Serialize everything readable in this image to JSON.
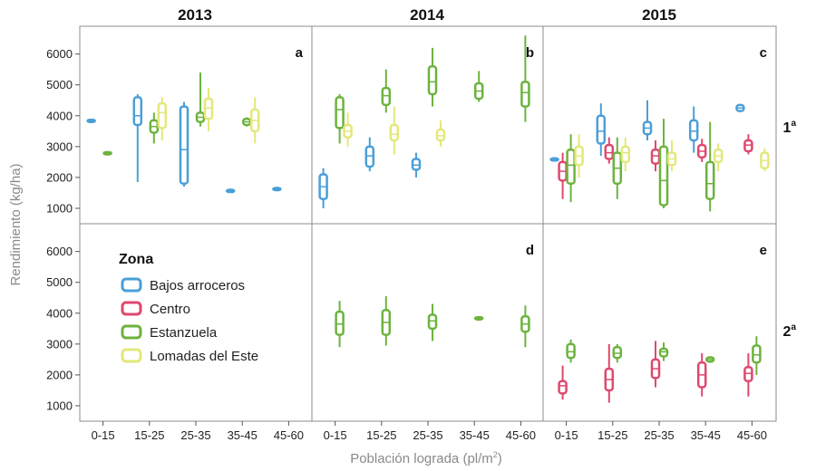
{
  "chart_data": {
    "type": "boxplot",
    "columns": [
      "2013",
      "2014",
      "2015"
    ],
    "rows": [
      {
        "label": "1",
        "sup": "a"
      },
      {
        "label": "2",
        "sup": "a"
      }
    ],
    "categories": [
      "0-15",
      "15-25",
      "25-35",
      "35-45",
      "45-60"
    ],
    "ylabel": "Rendimiento (kg/ha)",
    "xlabel": "Población lograda (pl/m",
    "xlabel_sup": "2",
    "xlabel_end": ")",
    "yticks": [
      1000,
      2000,
      3000,
      4000,
      5000,
      6000
    ],
    "ylim": [
      500,
      6900
    ],
    "legend": {
      "title": "Zona",
      "entries": [
        {
          "name": "Bajos arroceros",
          "color": "#4a9fd8"
        },
        {
          "name": "Centro",
          "color": "#e0476e"
        },
        {
          "name": "Estanzuela",
          "color": "#6cb33e"
        },
        {
          "name": "Lomadas del Este",
          "color": "#e3e87a"
        }
      ]
    },
    "panels": [
      {
        "row": 0,
        "col": 0,
        "letter": "a",
        "boxes": [
          {
            "cat": 0,
            "zone": 0,
            "stats": [
              3850,
              3850,
              3850,
              3870,
              3870
            ]
          },
          {
            "cat": 0,
            "zone": 2,
            "stats": [
              2780,
              2780,
              2800,
              2820,
              2820
            ]
          },
          {
            "cat": 1,
            "zone": 0,
            "stats": [
              1850,
              3700,
              4000,
              4600,
              4700
            ]
          },
          {
            "cat": 1,
            "zone": 2,
            "stats": [
              3100,
              3450,
              3650,
              3850,
              4100
            ]
          },
          {
            "cat": 1,
            "zone": 3,
            "stats": [
              3200,
              3600,
              4100,
              4400,
              4600
            ]
          },
          {
            "cat": 2,
            "zone": 0,
            "stats": [
              1700,
              1800,
              2900,
              4300,
              4450
            ]
          },
          {
            "cat": 2,
            "zone": 2,
            "stats": [
              3650,
              3800,
              3950,
              4100,
              5400
            ]
          },
          {
            "cat": 2,
            "zone": 3,
            "stats": [
              3500,
              3900,
              4250,
              4550,
              4900
            ]
          },
          {
            "cat": 3,
            "zone": 0,
            "stats": [
              1560,
              1560,
              1580,
              1600,
              1600
            ]
          },
          {
            "cat": 3,
            "zone": 2,
            "stats": [
              3650,
              3700,
              3800,
              3900,
              3950
            ]
          },
          {
            "cat": 3,
            "zone": 3,
            "stats": [
              3100,
              3500,
              3850,
              4200,
              4600
            ]
          },
          {
            "cat": 4,
            "zone": 0,
            "stats": [
              1620,
              1620,
              1640,
              1660,
              1660
            ]
          }
        ]
      },
      {
        "row": 0,
        "col": 1,
        "letter": "b",
        "boxes": [
          {
            "cat": 0,
            "zone": 0,
            "stats": [
              1000,
              1300,
              1700,
              2100,
              2300
            ]
          },
          {
            "cat": 0,
            "zone": 2,
            "stats": [
              3100,
              3600,
              4200,
              4600,
              4700
            ]
          },
          {
            "cat": 0,
            "zone": 3,
            "stats": [
              3000,
              3300,
              3500,
              3700,
              4100
            ]
          },
          {
            "cat": 1,
            "zone": 0,
            "stats": [
              2200,
              2350,
              2700,
              3000,
              3300
            ]
          },
          {
            "cat": 1,
            "zone": 2,
            "stats": [
              4100,
              4350,
              4650,
              4900,
              5500
            ]
          },
          {
            "cat": 1,
            "zone": 3,
            "stats": [
              2750,
              3200,
              3400,
              3700,
              4300
            ]
          },
          {
            "cat": 2,
            "zone": 0,
            "stats": [
              2000,
              2250,
              2400,
              2600,
              2800
            ]
          },
          {
            "cat": 2,
            "zone": 2,
            "stats": [
              4300,
              4700,
              5100,
              5600,
              6200
            ]
          },
          {
            "cat": 2,
            "zone": 3,
            "stats": [
              3000,
              3200,
              3350,
              3550,
              3850
            ]
          },
          {
            "cat": 3,
            "zone": 2,
            "stats": [
              4450,
              4550,
              4800,
              5050,
              5450
            ]
          },
          {
            "cat": 4,
            "zone": 2,
            "stats": [
              3800,
              4300,
              4750,
              5100,
              6600
            ]
          }
        ]
      },
      {
        "row": 0,
        "col": 2,
        "letter": "c",
        "boxes": [
          {
            "cat": 0,
            "zone": 0,
            "stats": [
              2580,
              2580,
              2600,
              2620,
              2620
            ]
          },
          {
            "cat": 0,
            "zone": 1,
            "stats": [
              1300,
              1900,
              2200,
              2500,
              2800
            ]
          },
          {
            "cat": 0,
            "zone": 2,
            "stats": [
              1200,
              1800,
              2400,
              2900,
              3400
            ]
          },
          {
            "cat": 0,
            "zone": 3,
            "stats": [
              2000,
              2400,
              2700,
              3000,
              3400
            ]
          },
          {
            "cat": 1,
            "zone": 0,
            "stats": [
              2700,
              3100,
              3500,
              4000,
              4400
            ]
          },
          {
            "cat": 1,
            "zone": 1,
            "stats": [
              2450,
              2600,
              2800,
              3050,
              3300
            ]
          },
          {
            "cat": 1,
            "zone": 2,
            "stats": [
              1300,
              1800,
              2300,
              2800,
              3300
            ]
          },
          {
            "cat": 1,
            "zone": 3,
            "stats": [
              2200,
              2500,
              2800,
              3000,
              3300
            ]
          },
          {
            "cat": 2,
            "zone": 0,
            "stats": [
              3200,
              3400,
              3600,
              3800,
              4500
            ]
          },
          {
            "cat": 2,
            "zone": 1,
            "stats": [
              2200,
              2450,
              2700,
              2900,
              3200
            ]
          },
          {
            "cat": 2,
            "zone": 2,
            "stats": [
              1000,
              1100,
              1900,
              3000,
              3900
            ]
          },
          {
            "cat": 2,
            "zone": 3,
            "stats": [
              2200,
              2400,
              2600,
              2800,
              3200
            ]
          },
          {
            "cat": 3,
            "zone": 0,
            "stats": [
              2800,
              3200,
              3500,
              3850,
              4300
            ]
          },
          {
            "cat": 3,
            "zone": 1,
            "stats": [
              2500,
              2650,
              2850,
              3050,
              3250
            ]
          },
          {
            "cat": 3,
            "zone": 2,
            "stats": [
              900,
              1300,
              1800,
              2500,
              3800
            ]
          },
          {
            "cat": 3,
            "zone": 3,
            "stats": [
              2200,
              2500,
              2700,
              2900,
              3100
            ]
          },
          {
            "cat": 4,
            "zone": 0,
            "stats": [
              4150,
              4150,
              4250,
              4350,
              4350
            ]
          },
          {
            "cat": 4,
            "zone": 1,
            "stats": [
              2750,
              2850,
              3050,
              3200,
              3400
            ]
          },
          {
            "cat": 4,
            "zone": 3,
            "stats": [
              2200,
              2300,
              2550,
              2800,
              2950
            ]
          }
        ]
      },
      {
        "row": 1,
        "col": 0,
        "letter": "",
        "boxes": []
      },
      {
        "row": 1,
        "col": 1,
        "letter": "d",
        "boxes": [
          {
            "cat": 0,
            "zone": 2,
            "stats": [
              2900,
              3300,
              3650,
              4050,
              4400
            ]
          },
          {
            "cat": 1,
            "zone": 2,
            "stats": [
              2950,
              3300,
              3700,
              4100,
              4550
            ]
          },
          {
            "cat": 2,
            "zone": 2,
            "stats": [
              3100,
              3500,
              3750,
              3950,
              4300
            ]
          },
          {
            "cat": 3,
            "zone": 2,
            "stats": [
              3830,
              3830,
              3850,
              3870,
              3870
            ]
          },
          {
            "cat": 4,
            "zone": 2,
            "stats": [
              2900,
              3400,
              3650,
              3900,
              4250
            ]
          }
        ]
      },
      {
        "row": 1,
        "col": 2,
        "letter": "e",
        "boxes": [
          {
            "cat": 0,
            "zone": 1,
            "stats": [
              1200,
              1400,
              1650,
              1800,
              2300
            ]
          },
          {
            "cat": 0,
            "zone": 2,
            "stats": [
              2400,
              2550,
              2750,
              3000,
              3150
            ]
          },
          {
            "cat": 1,
            "zone": 1,
            "stats": [
              1100,
              1500,
              1850,
              2200,
              3000
            ]
          },
          {
            "cat": 1,
            "zone": 2,
            "stats": [
              2400,
              2550,
              2700,
              2900,
              3000
            ]
          },
          {
            "cat": 2,
            "zone": 1,
            "stats": [
              1600,
              1900,
              2200,
              2500,
              3100
            ]
          },
          {
            "cat": 2,
            "zone": 2,
            "stats": [
              2450,
              2600,
              2750,
              2850,
              3050
            ]
          },
          {
            "cat": 3,
            "zone": 1,
            "stats": [
              1300,
              1600,
              2000,
              2400,
              2700
            ]
          },
          {
            "cat": 3,
            "zone": 2,
            "stats": [
              2400,
              2430,
              2500,
              2570,
              2600
            ]
          },
          {
            "cat": 4,
            "zone": 1,
            "stats": [
              1300,
              1800,
              2050,
              2250,
              2700
            ]
          },
          {
            "cat": 4,
            "zone": 2,
            "stats": [
              2000,
              2400,
              2650,
              2950,
              3250
            ]
          }
        ]
      }
    ]
  }
}
